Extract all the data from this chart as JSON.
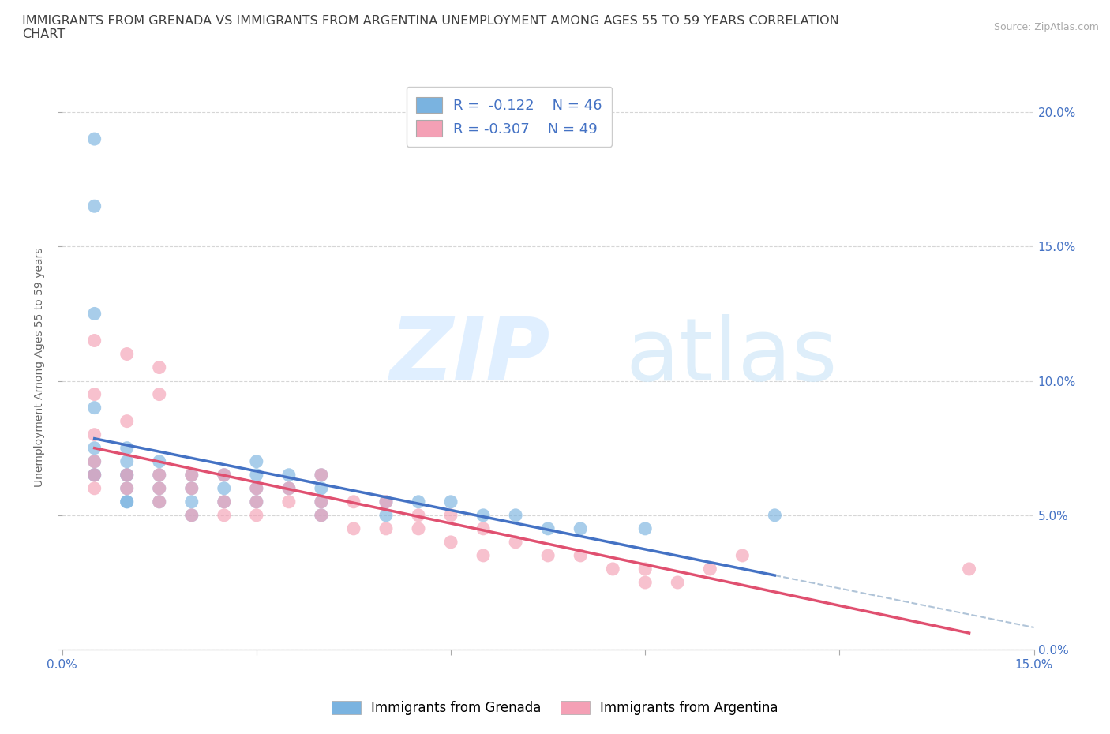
{
  "title": "IMMIGRANTS FROM GRENADA VS IMMIGRANTS FROM ARGENTINA UNEMPLOYMENT AMONG AGES 55 TO 59 YEARS CORRELATION\nCHART",
  "source": "Source: ZipAtlas.com",
  "ylabel": "Unemployment Among Ages 55 to 59 years",
  "xlim": [
    0.0,
    0.15
  ],
  "ylim": [
    0.0,
    0.21
  ],
  "xticks": [
    0.0,
    0.03,
    0.06,
    0.09,
    0.12,
    0.15
  ],
  "xticklabels_ends": [
    "0.0%",
    "15.0%"
  ],
  "yticks": [
    0.0,
    0.05,
    0.1,
    0.15,
    0.2
  ],
  "yticklabels": [
    "0.0%",
    "5.0%",
    "10.0%",
    "15.0%",
    "20.0%"
  ],
  "grenada_color": "#7ab3e0",
  "argentina_color": "#f4a0b5",
  "grenada_line_color": "#4472c4",
  "argentina_line_color": "#e05070",
  "dashed_color": "#b0c4d8",
  "grenada_R": -0.122,
  "grenada_N": 46,
  "argentina_R": -0.307,
  "argentina_N": 49,
  "legend_label_grenada": "Immigrants from Grenada",
  "legend_label_argentina": "Immigrants from Argentina",
  "grenada_x": [
    0.005,
    0.005,
    0.005,
    0.005,
    0.005,
    0.005,
    0.005,
    0.005,
    0.01,
    0.01,
    0.01,
    0.01,
    0.01,
    0.01,
    0.01,
    0.015,
    0.015,
    0.015,
    0.015,
    0.02,
    0.02,
    0.02,
    0.02,
    0.025,
    0.025,
    0.025,
    0.03,
    0.03,
    0.03,
    0.03,
    0.035,
    0.035,
    0.04,
    0.04,
    0.04,
    0.04,
    0.05,
    0.05,
    0.055,
    0.06,
    0.065,
    0.07,
    0.075,
    0.08,
    0.09,
    0.11
  ],
  "grenada_y": [
    0.19,
    0.165,
    0.125,
    0.09,
    0.075,
    0.07,
    0.065,
    0.065,
    0.075,
    0.07,
    0.065,
    0.065,
    0.06,
    0.055,
    0.055,
    0.07,
    0.065,
    0.06,
    0.055,
    0.065,
    0.06,
    0.055,
    0.05,
    0.065,
    0.06,
    0.055,
    0.07,
    0.065,
    0.06,
    0.055,
    0.065,
    0.06,
    0.065,
    0.06,
    0.055,
    0.05,
    0.055,
    0.05,
    0.055,
    0.055,
    0.05,
    0.05,
    0.045,
    0.045,
    0.045,
    0.05
  ],
  "argentina_x": [
    0.005,
    0.005,
    0.005,
    0.005,
    0.005,
    0.005,
    0.01,
    0.01,
    0.01,
    0.01,
    0.015,
    0.015,
    0.015,
    0.015,
    0.015,
    0.02,
    0.02,
    0.02,
    0.025,
    0.025,
    0.025,
    0.03,
    0.03,
    0.03,
    0.035,
    0.035,
    0.04,
    0.04,
    0.04,
    0.045,
    0.045,
    0.05,
    0.05,
    0.055,
    0.055,
    0.06,
    0.06,
    0.065,
    0.065,
    0.07,
    0.075,
    0.08,
    0.085,
    0.09,
    0.09,
    0.095,
    0.1,
    0.105,
    0.14
  ],
  "argentina_y": [
    0.115,
    0.095,
    0.08,
    0.07,
    0.065,
    0.06,
    0.11,
    0.085,
    0.065,
    0.06,
    0.105,
    0.095,
    0.065,
    0.06,
    0.055,
    0.065,
    0.06,
    0.05,
    0.065,
    0.055,
    0.05,
    0.06,
    0.055,
    0.05,
    0.06,
    0.055,
    0.065,
    0.055,
    0.05,
    0.055,
    0.045,
    0.055,
    0.045,
    0.05,
    0.045,
    0.05,
    0.04,
    0.045,
    0.035,
    0.04,
    0.035,
    0.035,
    0.03,
    0.03,
    0.025,
    0.025,
    0.03,
    0.035,
    0.03
  ],
  "background_color": "#ffffff",
  "grid_color": "#cccccc",
  "tick_color": "#4472c4",
  "title_color": "#404040",
  "title_fontsize": 11.5,
  "label_fontsize": 10,
  "tick_fontsize": 11
}
